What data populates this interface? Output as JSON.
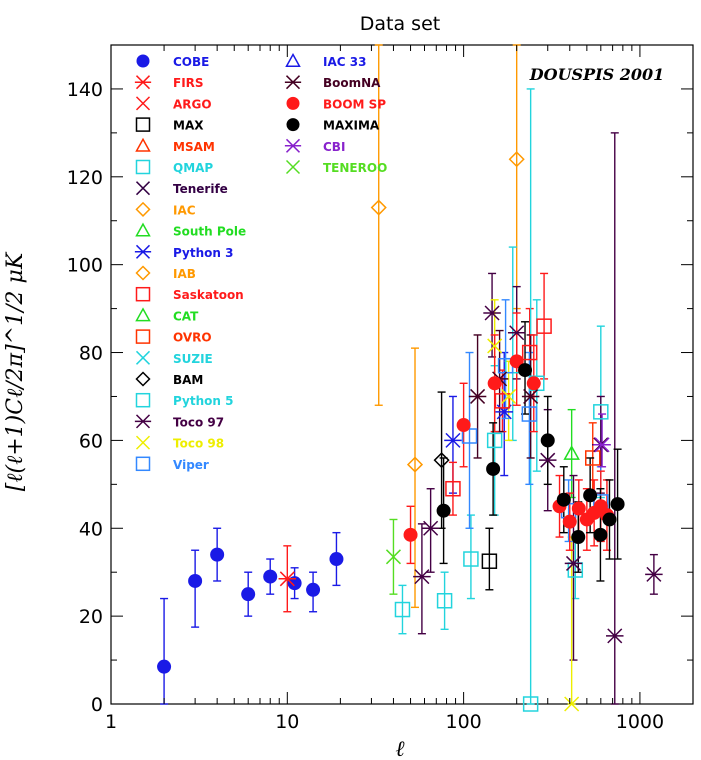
{
  "chart_data": {
    "type": "scatter",
    "title": "Data set",
    "xlabel": "ℓ",
    "ylabel": "[ℓ(ℓ+1)Cℓ/2π]^1/2 μK",
    "xscale": "log",
    "xlim": [
      1,
      2000
    ],
    "ylim": [
      0,
      150
    ],
    "xticks": [
      {
        "v": 1,
        "label": "1"
      },
      {
        "v": 10,
        "label": "10"
      },
      {
        "v": 100,
        "label": "100"
      },
      {
        "v": 1000,
        "label": "1000"
      }
    ],
    "yticks": [
      {
        "v": 0,
        "label": "0"
      },
      {
        "v": 20,
        "label": "20"
      },
      {
        "v": 40,
        "label": "40"
      },
      {
        "v": 60,
        "label": "60"
      },
      {
        "v": 80,
        "label": "80"
      },
      {
        "v": 100,
        "label": "100"
      },
      {
        "v": 120,
        "label": "120"
      },
      {
        "v": 140,
        "label": "140"
      }
    ],
    "annotation": "DOUSPIS 2001",
    "series": [
      {
        "name": "COBE",
        "color": "#1a1ae6",
        "marker": "circle-filled",
        "points": [
          [
            2,
            8.5,
            0,
            24
          ],
          [
            3,
            28,
            17.5,
            35
          ],
          [
            4,
            34,
            28,
            40
          ],
          [
            6,
            25,
            20,
            30
          ],
          [
            8,
            29,
            25,
            33
          ],
          [
            11,
            27.5,
            24,
            31
          ],
          [
            14,
            26,
            21,
            30
          ],
          [
            19,
            33,
            27,
            39
          ]
        ]
      },
      {
        "name": "FIRS",
        "color": "#ff1a1a",
        "marker": "asterisk",
        "points": [
          [
            10,
            28.5,
            21,
            36
          ]
        ]
      },
      {
        "name": "ARGO",
        "color": "#ff1a1a",
        "marker": "x",
        "points": []
      },
      {
        "name": "MAX",
        "color": "#000000",
        "marker": "square",
        "points": [
          [
            140,
            32.5,
            26,
            40
          ]
        ]
      },
      {
        "name": "MSAM",
        "color": "#ff3300",
        "marker": "triangle",
        "points": []
      },
      {
        "name": "QMAP",
        "color": "#22d4dd",
        "marker": "square",
        "points": [
          [
            45,
            21.5,
            16,
            27
          ],
          [
            78,
            23.5,
            17,
            30
          ],
          [
            110,
            33,
            24,
            43
          ]
        ]
      },
      {
        "name": "Tenerife",
        "color": "#330044",
        "marker": "x",
        "points": []
      },
      {
        "name": "IAC",
        "color": "#ff9900",
        "marker": "diamond",
        "points": [
          [
            33,
            113,
            68,
            150
          ],
          [
            53,
            54.5,
            22,
            81
          ],
          [
            200,
            124,
            90,
            150
          ]
        ]
      },
      {
        "name": "South Pole",
        "color": "#22dd22",
        "marker": "triangle",
        "points": []
      },
      {
        "name": "Python 3",
        "color": "#1a1ae6",
        "marker": "asterisk",
        "points": [
          [
            87,
            60,
            48,
            70
          ],
          [
            170,
            66.5,
            52,
            80
          ]
        ]
      },
      {
        "name": "IAB",
        "color": "#ff9900",
        "marker": "diamond",
        "points": []
      },
      {
        "name": "Saskatoon",
        "color": "#ff1a1a",
        "marker": "square",
        "points": [
          [
            87,
            49,
            43,
            55
          ],
          [
            166,
            69,
            62,
            76
          ],
          [
            237,
            80,
            70,
            90
          ],
          [
            286,
            86,
            74,
            98
          ]
        ]
      },
      {
        "name": "CAT",
        "color": "#22dd22",
        "marker": "triangle",
        "points": [
          [
            410,
            57,
            47,
            67
          ]
        ]
      },
      {
        "name": "OVRO",
        "color": "#ff3300",
        "marker": "square",
        "points": [
          [
            540,
            56,
            47,
            64
          ]
        ]
      },
      {
        "name": "SUZIE",
        "color": "#22d4dd",
        "marker": "x",
        "points": []
      },
      {
        "name": "BAM",
        "color": "#000000",
        "marker": "diamond",
        "points": [
          [
            75,
            55.5,
            40,
            71
          ]
        ]
      },
      {
        "name": "Python 5",
        "color": "#22d4dd",
        "marker": "square",
        "points": [
          [
            150,
            60,
            43,
            77
          ],
          [
            190,
            77,
            60,
            104
          ],
          [
            240,
            0,
            0,
            140
          ],
          [
            260,
            73,
            53,
            92
          ],
          [
            430,
            30.5,
            24,
            38
          ],
          [
            600,
            66.5,
            47,
            86
          ]
        ]
      },
      {
        "name": "Toco 97",
        "color": "#440044",
        "marker": "asterisk",
        "points": [
          [
            58,
            29,
            16,
            41
          ],
          [
            65,
            40,
            30,
            49
          ],
          [
            145,
            89,
            79,
            98
          ],
          [
            200,
            84.5,
            74,
            95
          ],
          [
            300,
            55.5,
            44,
            67
          ],
          [
            420,
            32,
            10,
            52
          ],
          [
            600,
            59,
            48,
            70
          ],
          [
            720,
            15.5,
            0,
            130
          ],
          [
            1200,
            29.5,
            25,
            34
          ]
        ]
      },
      {
        "name": "Toco 98",
        "color": "#eeee00",
        "marker": "x",
        "points": [
          [
            150,
            81.5,
            72,
            92
          ],
          [
            180,
            70,
            60,
            78
          ],
          [
            410,
            0,
            0,
            38
          ]
        ]
      },
      {
        "name": "Viper",
        "color": "#3388ff",
        "marker": "square",
        "points": [
          [
            108,
            61,
            40,
            80
          ],
          [
            173,
            77,
            65,
            92
          ],
          [
            236,
            66,
            50,
            80
          ],
          [
            394,
            44,
            37,
            51
          ],
          [
            600,
            46,
            38,
            54
          ]
        ]
      },
      {
        "name": "IAC 33",
        "color": "#1a1ae6",
        "marker": "triangle",
        "points": []
      },
      {
        "name": "BoomNA",
        "color": "#440022",
        "marker": "asterisk",
        "points": [
          [
            120,
            70,
            56,
            84
          ],
          [
            160,
            74,
            62,
            85
          ],
          [
            240,
            70,
            56,
            84
          ]
        ]
      },
      {
        "name": "BOOM SP",
        "color": "#ff1a1a",
        "marker": "circle-filled",
        "points": [
          [
            50,
            38.5,
            32,
            45
          ],
          [
            100,
            63.5,
            54,
            73
          ],
          [
            150,
            73,
            62,
            84
          ],
          [
            200,
            78,
            68,
            89
          ],
          [
            250,
            73,
            62,
            84
          ],
          [
            350,
            45,
            38,
            52
          ],
          [
            400,
            41.5,
            35,
            48
          ],
          [
            450,
            44.5,
            38,
            51
          ],
          [
            500,
            42,
            35,
            49
          ],
          [
            550,
            43.5,
            36,
            51
          ],
          [
            600,
            45,
            37,
            53
          ],
          [
            650,
            43,
            35,
            51
          ]
        ]
      },
      {
        "name": "MAXIMA",
        "color": "#000000",
        "marker": "circle-filled",
        "points": [
          [
            77,
            44,
            32,
            56
          ],
          [
            147,
            53.5,
            43,
            64
          ],
          [
            223,
            76,
            66,
            87
          ],
          [
            300,
            60,
            50,
            70
          ],
          [
            370,
            46.5,
            39,
            54
          ],
          [
            447,
            38,
            30,
            46
          ],
          [
            522,
            47.5,
            39,
            56
          ],
          [
            597,
            38.5,
            28,
            49
          ],
          [
            672,
            42,
            33,
            51
          ],
          [
            747,
            45.5,
            33,
            58
          ]
        ]
      },
      {
        "name": "CBI",
        "color": "#8822cc",
        "marker": "asterisk",
        "points": [
          [
            610,
            59,
            54,
            66
          ]
        ]
      },
      {
        "name": "TENEROO",
        "color": "#55dd22",
        "marker": "x",
        "points": [
          [
            40,
            33.5,
            25,
            42
          ]
        ]
      }
    ]
  }
}
